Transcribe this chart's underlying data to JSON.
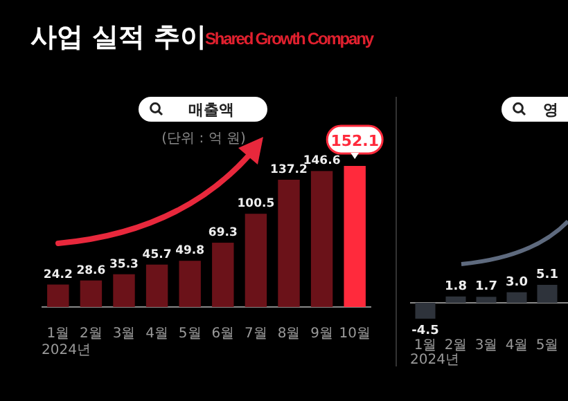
{
  "chart_data": [
    {
      "type": "bar",
      "title": "매출액",
      "subtitle": "Shared Growth Company",
      "annotations": [
        "사업 실적 추이",
        "(단위 : 억 원)",
        "2024년"
      ],
      "categories": [
        "1월",
        "2월",
        "3월",
        "4월",
        "5월",
        "6월",
        "7월",
        "8월",
        "9월",
        "10월"
      ],
      "values": [
        24.2,
        28.6,
        35.3,
        45.7,
        49.8,
        69.3,
        100.5,
        137.2,
        146.6,
        152.1
      ],
      "colors": [
        "#6b1219",
        "#6b1219",
        "#6b1219",
        "#6b1219",
        "#6b1219",
        "#6b1219",
        "#6b1219",
        "#6b1219",
        "#6b1219",
        "#ff2a3c"
      ],
      "data_labels": true
    },
    {
      "type": "bar",
      "title": "영",
      "annotations": [
        "2024년"
      ],
      "categories": [
        "1월",
        "2월",
        "3월",
        "4월",
        "5월"
      ],
      "values": [
        -4.5,
        1.8,
        1.7,
        3.0,
        5.1
      ],
      "colors": [
        "#2e333b",
        "#2e333b",
        "#2e333b",
        "#2e333b",
        "#2e333b"
      ],
      "value_labels": [
        "-4.5",
        "1.8",
        "1.7",
        "3.0",
        "5.1"
      ]
    }
  ]
}
